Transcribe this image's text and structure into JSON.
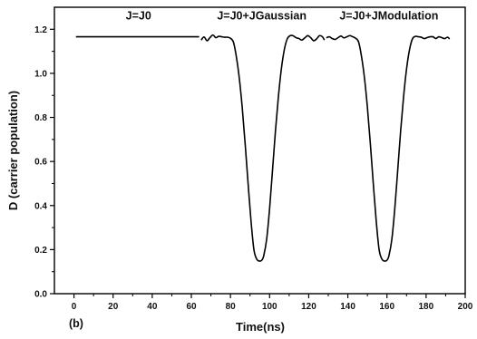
{
  "chart_data": {
    "type": "line",
    "title": "",
    "panel_label": "(b)",
    "xlabel": "Time(ns)",
    "ylabel": "D (carrier population)",
    "xlim": [
      -10,
      200
    ],
    "ylim": [
      0.0,
      1.3
    ],
    "x_ticks": [
      0,
      20,
      40,
      60,
      80,
      100,
      120,
      140,
      160,
      180,
      200
    ],
    "y_ticks": [
      0.0,
      0.2,
      0.4,
      0.6,
      0.8,
      1.0,
      1.2
    ],
    "x_tick_labels": [
      "0",
      "20",
      "40",
      "60",
      "80",
      "100",
      "120",
      "140",
      "160",
      "180",
      "200"
    ],
    "y_tick_labels": [
      "0.0",
      "0.2",
      "0.4",
      "0.6",
      "0.8",
      "1.0",
      "1.2"
    ],
    "grid": false,
    "annotations": [
      {
        "text": "J=J0",
        "x": 33,
        "y": 1.245
      },
      {
        "text": "J=J0+JGaussian",
        "x": 96,
        "y": 1.245
      },
      {
        "text": "J=J0+JModulation",
        "x": 161,
        "y": 1.245
      }
    ],
    "series": [
      {
        "color": "#000000",
        "segments": [
          {
            "x": [
              1,
              10,
              20,
              30,
              40,
              50,
              60,
              64
            ],
            "y": [
              1.166,
              1.166,
              1.166,
              1.166,
              1.166,
              1.166,
              1.166,
              1.166
            ]
          },
          {
            "x": [
              65,
              66.5,
              68,
              69.5,
              71,
              72.5,
              74,
              75.5,
              77,
              78.5,
              80,
              81.5,
              83,
              84.5,
              86,
              87.5,
              89,
              90.5,
              92,
              93.5,
              95,
              96,
              97,
              98.5,
              100,
              101.5,
              103,
              104.5,
              106,
              107.5,
              109,
              110.5,
              112,
              113.5,
              115,
              116.5,
              118,
              119.5,
              121,
              122.5,
              124,
              125.5,
              127,
              128
            ],
            "y": [
              1.151,
              1.165,
              1.148,
              1.162,
              1.174,
              1.162,
              1.168,
              1.166,
              1.164,
              1.164,
              1.159,
              1.142,
              1.076,
              0.979,
              0.846,
              0.681,
              0.501,
              0.331,
              0.199,
              0.156,
              0.148,
              0.152,
              0.172,
              0.247,
              0.386,
              0.561,
              0.739,
              0.894,
              1.019,
              1.106,
              1.156,
              1.171,
              1.171,
              1.162,
              1.158,
              1.151,
              1.161,
              1.171,
              1.162,
              1.148,
              1.156,
              1.171,
              1.166,
              1.151
            ]
          },
          {
            "x": [
              129,
              130.5,
              132,
              133.5,
              135,
              136.5,
              138,
              139.5,
              141,
              142.5,
              144,
              145.5,
              147,
              148.5,
              150,
              151.5,
              153,
              154.5,
              156,
              157.5,
              159,
              160,
              161,
              162.5,
              164,
              165.5,
              167,
              168.5,
              170,
              171.5,
              173,
              174.5,
              176,
              177.5,
              179,
              180.5,
              182,
              183.5,
              185,
              186.5,
              188,
              189.5,
              191,
              192
            ],
            "y": [
              1.161,
              1.166,
              1.158,
              1.154,
              1.162,
              1.169,
              1.161,
              1.166,
              1.171,
              1.166,
              1.159,
              1.142,
              1.076,
              0.979,
              0.846,
              0.681,
              0.501,
              0.331,
              0.199,
              0.156,
              0.148,
              0.152,
              0.172,
              0.247,
              0.386,
              0.561,
              0.739,
              0.894,
              1.019,
              1.106,
              1.156,
              1.168,
              1.166,
              1.164,
              1.158,
              1.162,
              1.166,
              1.166,
              1.158,
              1.166,
              1.162,
              1.158,
              1.164,
              1.156
            ]
          }
        ]
      }
    ]
  }
}
